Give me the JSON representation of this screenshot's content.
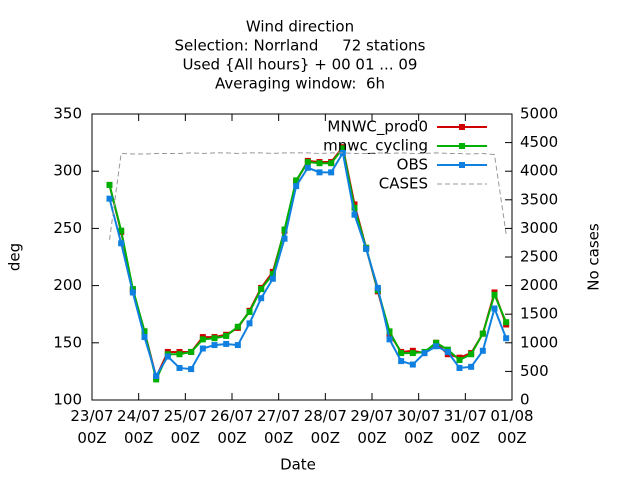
{
  "chart_data": {
    "type": "line",
    "title": [
      "Wind direction",
      "Selection: Norrland     72 stations",
      "Used {All hours} + 00 01 ... 09",
      "Averaging window:  6h"
    ],
    "xlabel": "Date",
    "ylabel": "deg",
    "y2label": "No cases",
    "x": [
      9,
      15,
      21,
      27,
      33,
      39,
      45,
      51,
      57,
      63,
      69,
      75,
      81,
      87,
      93,
      99,
      105,
      111,
      117,
      123,
      129,
      135,
      141,
      147,
      153,
      159,
      165,
      171,
      177,
      183,
      189,
      195,
      201,
      207,
      213
    ],
    "xlim": [
      0,
      216
    ],
    "xticks": [
      {
        "value": 0,
        "label": "23/07\n00Z"
      },
      {
        "value": 24,
        "label": "24/07\n00Z"
      },
      {
        "value": 48,
        "label": "25/07\n00Z"
      },
      {
        "value": 72,
        "label": "26/07\n00Z"
      },
      {
        "value": 96,
        "label": "27/07\n00Z"
      },
      {
        "value": 120,
        "label": "28/07\n00Z"
      },
      {
        "value": 144,
        "label": "29/07\n00Z"
      },
      {
        "value": 168,
        "label": "30/07\n00Z"
      },
      {
        "value": 192,
        "label": "31/07\n00Z"
      },
      {
        "value": 216,
        "label": "01/08\n00Z"
      }
    ],
    "ylim": [
      100,
      350
    ],
    "yticks": [
      100,
      150,
      200,
      250,
      300,
      350
    ],
    "y2lim": [
      0,
      5000
    ],
    "y2ticks": [
      0,
      500,
      1000,
      1500,
      2000,
      2500,
      3000,
      3500,
      4000,
      4500,
      5000
    ],
    "legend": "upper right",
    "series": [
      {
        "name": "MNWC_prod0",
        "color": "#d00000",
        "values": [
          288,
          247,
          196,
          160,
          120,
          142,
          142,
          142,
          155,
          155,
          157,
          163,
          178,
          198,
          212,
          248,
          291,
          309,
          308,
          308,
          321,
          271,
          233,
          195,
          158,
          142,
          143,
          141,
          150,
          140,
          137,
          141,
          158,
          194,
          166
        ]
      },
      {
        "name": "mnwc_cycling",
        "color": "#00b000",
        "values": [
          288,
          248,
          197,
          160,
          118,
          140,
          140,
          142,
          153,
          154,
          156,
          164,
          177,
          197,
          210,
          249,
          292,
          308,
          307,
          307,
          320,
          268,
          233,
          196,
          160,
          141,
          141,
          142,
          150,
          144,
          135,
          140,
          158,
          192,
          168
        ]
      },
      {
        "name": "OBS",
        "color": "#1080e0",
        "values": [
          276,
          237,
          194,
          155,
          121,
          138,
          128,
          127,
          145,
          148,
          149,
          148,
          167,
          189,
          206,
          241,
          287,
          303,
          299,
          299,
          316,
          262,
          232,
          198,
          153,
          134,
          131,
          141,
          147,
          142,
          128,
          129,
          143,
          180,
          154
        ]
      },
      {
        "name": "CASES",
        "color": "#999999",
        "dashed": true,
        "axis": "y2",
        "values": [
          2800,
          4310,
          4300,
          4300,
          4310,
          4310,
          4310,
          4320,
          4310,
          4320,
          4320,
          4310,
          4320,
          4320,
          4310,
          4320,
          4320,
          4320,
          4310,
          4320,
          4320,
          4310,
          4310,
          4320,
          4310,
          4320,
          4310,
          4310,
          4320,
          4310,
          4310,
          4300,
          4310,
          4290,
          2900
        ]
      }
    ]
  }
}
